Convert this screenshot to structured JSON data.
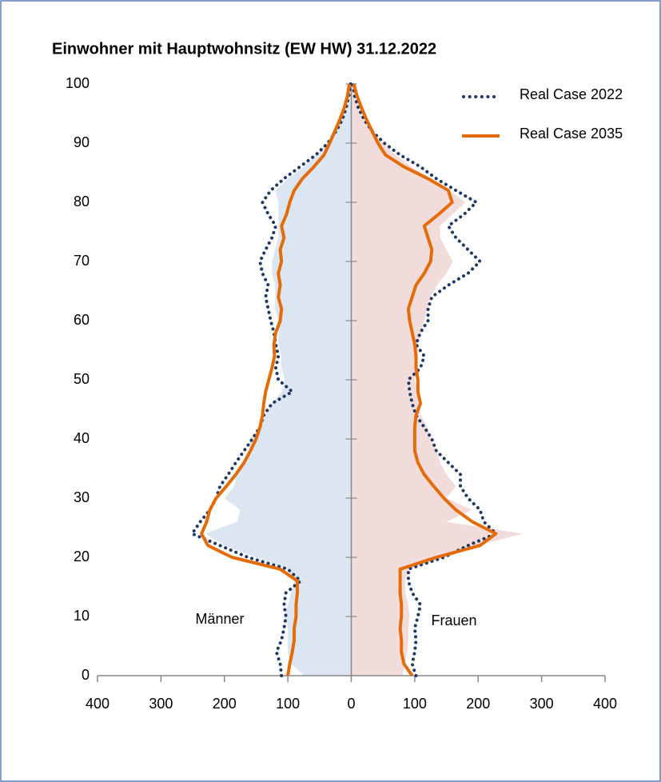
{
  "chart_data": {
    "type": "pyramid",
    "title": "Einwohner mit Hauptwohnsitz (EW HW) 31.12.2022",
    "left_label": "Männer",
    "right_label": "Frauen",
    "y": [
      0,
      2,
      4,
      6,
      8,
      10,
      12,
      14,
      16,
      18,
      20,
      22,
      24,
      26,
      28,
      30,
      32,
      34,
      36,
      38,
      40,
      42,
      44,
      46,
      48,
      50,
      52,
      54,
      56,
      58,
      60,
      62,
      64,
      66,
      68,
      70,
      72,
      74,
      76,
      78,
      80,
      82,
      84,
      86,
      88,
      90,
      92,
      94,
      96,
      98,
      100
    ],
    "xlim": [
      -400,
      400
    ],
    "xticks": [
      {
        "value": -400,
        "label": "400"
      },
      {
        "value": -300,
        "label": "300"
      },
      {
        "value": -200,
        "label": "200"
      },
      {
        "value": -100,
        "label": "100"
      },
      0,
      100,
      200,
      300,
      400
    ],
    "ylim": [
      0,
      100
    ],
    "yticks": [
      0,
      10,
      20,
      30,
      40,
      50,
      60,
      70,
      80,
      90,
      100
    ],
    "legend": "upper right",
    "fill": {
      "left_color": "#dce6f2",
      "right_color": "#f2dcdb",
      "left": [
        75,
        95,
        100,
        100,
        100,
        105,
        100,
        95,
        90,
        100,
        150,
        200,
        230,
        180,
        175,
        200,
        185,
        180,
        170,
        160,
        160,
        145,
        135,
        125,
        110,
        105,
        110,
        110,
        115,
        115,
        115,
        120,
        120,
        120,
        125,
        125,
        120,
        115,
        115,
        115,
        115,
        120,
        100,
        75,
        55,
        38,
        25,
        15,
        8,
        4,
        1
      ],
      "right": [
        80,
        85,
        88,
        90,
        90,
        92,
        90,
        85,
        85,
        90,
        150,
        200,
        270,
        150,
        190,
        150,
        165,
        150,
        140,
        135,
        125,
        120,
        110,
        105,
        105,
        100,
        105,
        105,
        105,
        110,
        115,
        120,
        125,
        135,
        150,
        160,
        150,
        140,
        140,
        160,
        180,
        155,
        125,
        95,
        70,
        50,
        33,
        20,
        12,
        6,
        3
      ]
    },
    "series": [
      {
        "name": "Real Case 2022",
        "color": "#1f3864",
        "style": "dotted",
        "left": [
          110,
          112,
          118,
          110,
          106,
          103,
          106,
          103,
          80,
          100,
          163,
          207,
          251,
          238,
          223,
          213,
          207,
          194,
          182,
          169,
          156,
          144,
          138,
          125,
          93,
          115,
          119,
          115,
          119,
          122,
          127,
          131,
          135,
          131,
          140,
          144,
          135,
          125,
          119,
          131,
          140,
          127,
          106,
          81,
          56,
          37,
          24,
          14,
          8,
          4,
          1
        ],
        "right": [
          102,
          96,
          100,
          102,
          100,
          105,
          109,
          96,
          90,
          90,
          146,
          184,
          228,
          209,
          203,
          184,
          172,
          172,
          153,
          134,
          127,
          115,
          102,
          96,
          92,
          90,
          109,
          115,
          102,
          109,
          121,
          121,
          127,
          153,
          184,
          203,
          184,
          165,
          153,
          178,
          197,
          165,
          134,
          109,
          77,
          52,
          33,
          20,
          11,
          5,
          3
        ]
      },
      {
        "name": "Real Case 2035",
        "color": "#e36c09",
        "style": "solid",
        "left": [
          100,
          97,
          93,
          90,
          90,
          87,
          87,
          85,
          85,
          112,
          188,
          226,
          236,
          228,
          223,
          213,
          197,
          182,
          169,
          159,
          150,
          144,
          140,
          138,
          135,
          130,
          125,
          121,
          122,
          119,
          112,
          110,
          115,
          112,
          115,
          110,
          112,
          106,
          110,
          102,
          97,
          90,
          77,
          59,
          43,
          34,
          26,
          18,
          11,
          6,
          3
        ],
        "right": [
          96,
          83,
          79,
          79,
          77,
          79,
          79,
          77,
          77,
          77,
          134,
          203,
          228,
          191,
          165,
          146,
          130,
          115,
          105,
          100,
          100,
          100,
          102,
          109,
          105,
          105,
          102,
          102,
          100,
          96,
          92,
          90,
          96,
          102,
          115,
          125,
          127,
          121,
          115,
          138,
          159,
          153,
          121,
          83,
          54,
          42,
          33,
          24,
          16,
          9,
          4
        ]
      }
    ]
  }
}
